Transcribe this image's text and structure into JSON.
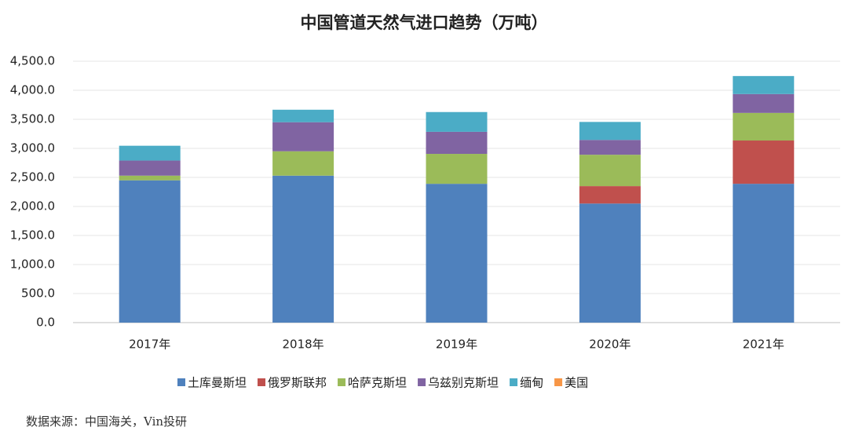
{
  "chart_data": {
    "type": "stacked_bar",
    "title": "中国管道天然气进口趋势（万吨）",
    "categories": [
      "2017年",
      "2018年",
      "2019年",
      "2020年",
      "2021年"
    ],
    "series": [
      {
        "name": "土库曼斯坦",
        "color": "#4f81bd",
        "values": [
          2450,
          2530,
          2390,
          2050,
          2390
        ]
      },
      {
        "name": "俄罗斯联邦",
        "color": "#c0504d",
        "values": [
          0,
          0,
          0,
          300,
          745
        ]
      },
      {
        "name": "哈萨克斯坦",
        "color": "#9bbb59",
        "values": [
          80,
          420,
          515,
          540,
          475
        ]
      },
      {
        "name": "乌兹别克斯坦",
        "color": "#8064a2",
        "values": [
          260,
          500,
          380,
          255,
          325
        ]
      },
      {
        "name": "缅甸",
        "color": "#4bacc6",
        "values": [
          255,
          215,
          340,
          310,
          310
        ]
      },
      {
        "name": "美国",
        "color": "#f79646",
        "values": [
          0,
          0,
          0,
          0,
          0
        ]
      }
    ],
    "ylim": [
      0,
      4500
    ],
    "yticks": [
      {
        "value": 0,
        "label": "0.0"
      },
      {
        "value": 500,
        "label": "500.0"
      },
      {
        "value": 1000,
        "label": "1,000.0"
      },
      {
        "value": 1500,
        "label": "1,500.0"
      },
      {
        "value": 2000,
        "label": "2,000.0"
      },
      {
        "value": 2500,
        "label": "2,500.0"
      },
      {
        "value": 3000,
        "label": "3,000.0"
      },
      {
        "value": 3500,
        "label": "3,500.0"
      },
      {
        "value": 4000,
        "label": "4,000.0"
      },
      {
        "value": 4500,
        "label": "4,500.0"
      }
    ],
    "grid": true,
    "legend": "bottom",
    "source": "数据来源：中国海关，Vin投研"
  }
}
